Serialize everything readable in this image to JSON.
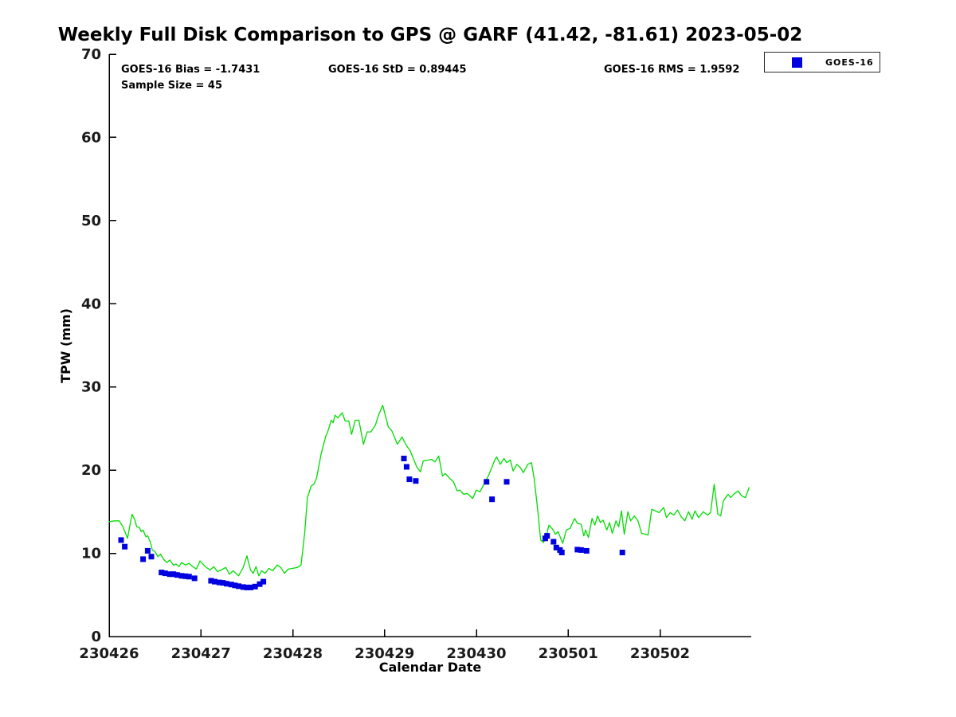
{
  "title": "Weekly Full Disk Comparison to GPS @ GARF (41.42, -81.61) 2023-05-02",
  "annotations": {
    "bias": "GOES-16 Bias = -1.7431",
    "sample_size": "Sample Size = 45",
    "std": "GOES-16 StD = 0.89445",
    "rms": "GOES-16 RMS = 1.9592"
  },
  "legend": {
    "position": "top-right",
    "items": [
      {
        "label": "GOES-16",
        "marker": "filled-square",
        "color": "#0000e0"
      }
    ]
  },
  "colors": {
    "line_green": "#00dc00",
    "marker_blue": "#0000e0",
    "axis": "#000000",
    "background": "#ffffff"
  },
  "chart_data": {
    "type": "line",
    "title": "Weekly Full Disk Comparison to GPS @ GARF (41.42, -81.61) 2023-05-02",
    "xlabel": "Calendar Date",
    "ylabel": "TPW (mm)",
    "ylim": [
      0,
      70
    ],
    "yticks": [
      0,
      10,
      20,
      30,
      40,
      50,
      60,
      70
    ],
    "xtick_labels": [
      "230426",
      "230427",
      "230428",
      "230429",
      "230430",
      "230501",
      "230502"
    ],
    "xtick_days": [
      0,
      1,
      2,
      3,
      4,
      5,
      6
    ],
    "xlim": [
      0,
      6.99
    ],
    "x_units": "fractional days since 230426",
    "grid": false,
    "legend_position": "top-right-outside",
    "series": [
      {
        "name": "GPS",
        "type": "line",
        "color": "#00dc00",
        "points": [
          [
            0.0,
            13.8
          ],
          [
            0.06,
            13.9
          ],
          [
            0.11,
            13.9
          ],
          [
            0.15,
            13.2
          ],
          [
            0.2,
            11.8
          ],
          [
            0.23,
            13.6
          ],
          [
            0.25,
            14.7
          ],
          [
            0.28,
            14.0
          ],
          [
            0.3,
            13.2
          ],
          [
            0.33,
            13.1
          ],
          [
            0.35,
            12.6
          ],
          [
            0.37,
            12.8
          ],
          [
            0.4,
            12.0
          ],
          [
            0.42,
            12.1
          ],
          [
            0.45,
            11.3
          ],
          [
            0.47,
            10.4
          ],
          [
            0.5,
            10.2
          ],
          [
            0.53,
            9.6
          ],
          [
            0.56,
            9.9
          ],
          [
            0.6,
            9.2
          ],
          [
            0.63,
            8.9
          ],
          [
            0.66,
            9.2
          ],
          [
            0.7,
            8.6
          ],
          [
            0.73,
            8.7
          ],
          [
            0.76,
            8.4
          ],
          [
            0.79,
            8.9
          ],
          [
            0.83,
            8.6
          ],
          [
            0.87,
            8.8
          ],
          [
            0.9,
            8.5
          ],
          [
            0.95,
            8.1
          ],
          [
            0.99,
            9.1
          ],
          [
            1.03,
            8.6
          ],
          [
            1.06,
            8.3
          ],
          [
            1.1,
            8.0
          ],
          [
            1.14,
            8.4
          ],
          [
            1.18,
            7.8
          ],
          [
            1.22,
            8.0
          ],
          [
            1.27,
            8.3
          ],
          [
            1.31,
            7.5
          ],
          [
            1.35,
            7.9
          ],
          [
            1.41,
            7.3
          ],
          [
            1.46,
            8.3
          ],
          [
            1.5,
            9.7
          ],
          [
            1.54,
            8.0
          ],
          [
            1.57,
            7.6
          ],
          [
            1.6,
            8.4
          ],
          [
            1.63,
            7.3
          ],
          [
            1.66,
            7.9
          ],
          [
            1.7,
            7.6
          ],
          [
            1.74,
            8.2
          ],
          [
            1.78,
            7.9
          ],
          [
            1.83,
            8.6
          ],
          [
            1.87,
            8.3
          ],
          [
            1.91,
            7.6
          ],
          [
            1.95,
            8.1
          ],
          [
            2.0,
            8.2
          ],
          [
            2.05,
            8.3
          ],
          [
            2.09,
            8.6
          ],
          [
            2.13,
            12.5
          ],
          [
            2.16,
            16.7
          ],
          [
            2.2,
            18.1
          ],
          [
            2.23,
            18.3
          ],
          [
            2.26,
            19.1
          ],
          [
            2.31,
            22.0
          ],
          [
            2.36,
            24.1
          ],
          [
            2.38,
            24.6
          ],
          [
            2.42,
            26.0
          ],
          [
            2.44,
            25.7
          ],
          [
            2.46,
            26.6
          ],
          [
            2.49,
            26.3
          ],
          [
            2.54,
            26.9
          ],
          [
            2.57,
            25.9
          ],
          [
            2.61,
            25.9
          ],
          [
            2.64,
            24.3
          ],
          [
            2.68,
            26.0
          ],
          [
            2.72,
            26.0
          ],
          [
            2.77,
            23.1
          ],
          [
            2.81,
            24.6
          ],
          [
            2.85,
            24.6
          ],
          [
            2.9,
            25.4
          ],
          [
            2.93,
            26.5
          ],
          [
            2.98,
            27.8
          ],
          [
            3.04,
            25.2
          ],
          [
            3.08,
            24.7
          ],
          [
            3.14,
            23.1
          ],
          [
            3.19,
            24.0
          ],
          [
            3.23,
            23.1
          ],
          [
            3.28,
            22.3
          ],
          [
            3.32,
            21.2
          ],
          [
            3.35,
            20.4
          ],
          [
            3.39,
            19.8
          ],
          [
            3.42,
            21.1
          ],
          [
            3.47,
            21.2
          ],
          [
            3.51,
            21.3
          ],
          [
            3.55,
            21.0
          ],
          [
            3.59,
            21.7
          ],
          [
            3.63,
            19.3
          ],
          [
            3.66,
            19.6
          ],
          [
            3.71,
            19.0
          ],
          [
            3.75,
            18.6
          ],
          [
            3.79,
            17.5
          ],
          [
            3.82,
            17.6
          ],
          [
            3.86,
            17.1
          ],
          [
            3.9,
            17.2
          ],
          [
            3.96,
            16.6
          ],
          [
            4.0,
            17.6
          ],
          [
            4.04,
            17.4
          ],
          [
            4.1,
            18.7
          ],
          [
            4.13,
            19.3
          ],
          [
            4.16,
            20.1
          ],
          [
            4.2,
            21.2
          ],
          [
            4.22,
            21.6
          ],
          [
            4.26,
            20.7
          ],
          [
            4.3,
            21.4
          ],
          [
            4.33,
            20.9
          ],
          [
            4.37,
            21.2
          ],
          [
            4.4,
            19.9
          ],
          [
            4.44,
            20.7
          ],
          [
            4.48,
            20.3
          ],
          [
            4.51,
            19.7
          ],
          [
            4.56,
            20.7
          ],
          [
            4.6,
            20.9
          ],
          [
            4.63,
            18.9
          ],
          [
            4.67,
            15.0
          ],
          [
            4.7,
            11.6
          ],
          [
            4.73,
            11.3
          ],
          [
            4.76,
            12.0
          ],
          [
            4.79,
            13.4
          ],
          [
            4.83,
            12.9
          ],
          [
            4.86,
            12.3
          ],
          [
            4.89,
            12.6
          ],
          [
            4.94,
            11.2
          ],
          [
            4.98,
            12.8
          ],
          [
            5.02,
            13.0
          ],
          [
            5.07,
            14.2
          ],
          [
            5.1,
            13.6
          ],
          [
            5.14,
            13.5
          ],
          [
            5.17,
            12.1
          ],
          [
            5.19,
            12.8
          ],
          [
            5.22,
            11.9
          ],
          [
            5.26,
            14.2
          ],
          [
            5.29,
            13.4
          ],
          [
            5.32,
            14.5
          ],
          [
            5.35,
            13.7
          ],
          [
            5.38,
            14.0
          ],
          [
            5.42,
            12.8
          ],
          [
            5.45,
            13.7
          ],
          [
            5.48,
            12.4
          ],
          [
            5.52,
            13.9
          ],
          [
            5.55,
            13.2
          ],
          [
            5.58,
            15.1
          ],
          [
            5.61,
            12.3
          ],
          [
            5.65,
            15.0
          ],
          [
            5.68,
            13.9
          ],
          [
            5.72,
            14.5
          ],
          [
            5.76,
            13.9
          ],
          [
            5.8,
            12.4
          ],
          [
            5.84,
            12.3
          ],
          [
            5.87,
            12.2
          ],
          [
            5.91,
            15.3
          ],
          [
            5.95,
            15.1
          ],
          [
            5.99,
            14.9
          ],
          [
            6.04,
            15.5
          ],
          [
            6.07,
            14.3
          ],
          [
            6.11,
            14.9
          ],
          [
            6.15,
            14.6
          ],
          [
            6.19,
            15.2
          ],
          [
            6.23,
            14.4
          ],
          [
            6.27,
            13.9
          ],
          [
            6.31,
            15.0
          ],
          [
            6.35,
            14.1
          ],
          [
            6.38,
            15.1
          ],
          [
            6.42,
            14.3
          ],
          [
            6.47,
            15.0
          ],
          [
            6.52,
            14.6
          ],
          [
            6.55,
            14.9
          ],
          [
            6.59,
            18.3
          ],
          [
            6.63,
            14.7
          ],
          [
            6.66,
            14.5
          ],
          [
            6.69,
            16.3
          ],
          [
            6.74,
            17.1
          ],
          [
            6.77,
            16.7
          ],
          [
            6.81,
            17.2
          ],
          [
            6.85,
            17.5
          ],
          [
            6.89,
            16.9
          ],
          [
            6.93,
            16.7
          ],
          [
            6.97,
            17.9
          ]
        ]
      },
      {
        "name": "GOES-16",
        "type": "scatter",
        "marker": "square",
        "color": "#0000e0",
        "points": [
          [
            0.13,
            11.6
          ],
          [
            0.17,
            10.8
          ],
          [
            0.37,
            9.3
          ],
          [
            0.42,
            10.3
          ],
          [
            0.46,
            9.6
          ],
          [
            0.57,
            7.7
          ],
          [
            0.61,
            7.6
          ],
          [
            0.66,
            7.5
          ],
          [
            0.7,
            7.5
          ],
          [
            0.74,
            7.4
          ],
          [
            0.79,
            7.3
          ],
          [
            0.83,
            7.25
          ],
          [
            0.87,
            7.2
          ],
          [
            0.93,
            7.0
          ],
          [
            1.11,
            6.7
          ],
          [
            1.15,
            6.6
          ],
          [
            1.2,
            6.5
          ],
          [
            1.24,
            6.45
          ],
          [
            1.28,
            6.35
          ],
          [
            1.33,
            6.25
          ],
          [
            1.37,
            6.15
          ],
          [
            1.41,
            6.05
          ],
          [
            1.46,
            5.95
          ],
          [
            1.5,
            5.9
          ],
          [
            1.54,
            5.9
          ],
          [
            1.59,
            6.0
          ],
          [
            1.64,
            6.3
          ],
          [
            1.68,
            6.6
          ],
          [
            3.21,
            21.4
          ],
          [
            3.24,
            20.4
          ],
          [
            3.27,
            18.9
          ],
          [
            3.34,
            18.7
          ],
          [
            4.11,
            18.6
          ],
          [
            4.17,
            16.5
          ],
          [
            4.33,
            18.6
          ],
          [
            4.75,
            11.8
          ],
          [
            4.77,
            12.1
          ],
          [
            4.84,
            11.4
          ],
          [
            4.87,
            10.7
          ],
          [
            4.91,
            10.4
          ],
          [
            4.93,
            10.1
          ],
          [
            5.1,
            10.45
          ],
          [
            5.14,
            10.4
          ],
          [
            5.2,
            10.3
          ],
          [
            5.59,
            10.1
          ]
        ]
      }
    ]
  }
}
